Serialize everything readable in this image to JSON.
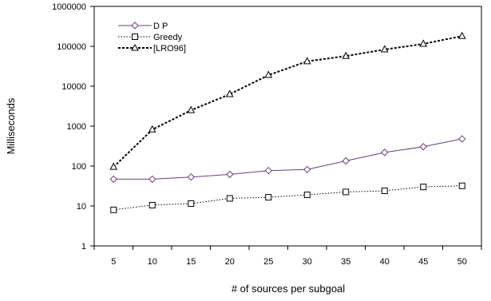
{
  "chart_data": {
    "type": "line",
    "yscale": "log",
    "ylim": [
      1,
      1000000
    ],
    "xlabel": "# of sources per subgoal",
    "ylabel": "Milliseconds",
    "grid": false,
    "legend_position": "top-left",
    "x": [
      5,
      10,
      15,
      20,
      25,
      30,
      35,
      40,
      45,
      50
    ],
    "y_tick_labels": [
      "1",
      "10",
      "100",
      "1000",
      "10000",
      "100000",
      "1000000"
    ],
    "x_tick_labels": [
      "5",
      "10",
      "15",
      "20",
      "25",
      "30",
      "35",
      "40",
      "45",
      "50"
    ],
    "series": [
      {
        "name": "D P",
        "marker": "diamond",
        "line_style": "solid",
        "color": "#6a3d7e",
        "values": [
          47,
          47,
          53,
          62,
          77,
          82,
          135,
          220,
          305,
          480
        ]
      },
      {
        "name": "Greedy",
        "marker": "square",
        "line_style": "dotted",
        "color": "#000000",
        "values": [
          8,
          10.5,
          11.5,
          15.5,
          16.5,
          19,
          22.5,
          24,
          30,
          32
        ]
      },
      {
        "name": "[LRO96]",
        "marker": "triangle",
        "line_style": "dashed",
        "color": "#000000",
        "values": [
          95,
          820,
          2500,
          6300,
          19000,
          42000,
          57000,
          83000,
          115000,
          180000
        ]
      }
    ]
  }
}
